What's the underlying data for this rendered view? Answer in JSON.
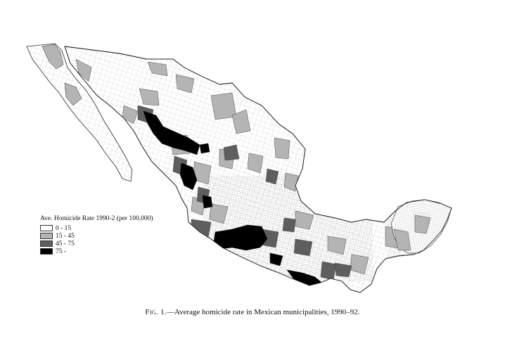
{
  "legend": {
    "title": "Ave. Homicide Rate 1990-2 (per 100,000)",
    "items": [
      {
        "label": "0 - 15",
        "color": "#ffffff"
      },
      {
        "label": "15 - 45",
        "color": "#b4b4b4"
      },
      {
        "label": "45 - 75",
        "color": "#5e5e5e"
      },
      {
        "label": "75 -",
        "color": "#000000"
      }
    ]
  },
  "caption": {
    "fig_label": "Fig. 1.",
    "text": "—Average homicide rate in Mexican municipalities, 1990–92."
  },
  "colors": {
    "outline": "#2a2a2a",
    "background": "#ffffff"
  }
}
